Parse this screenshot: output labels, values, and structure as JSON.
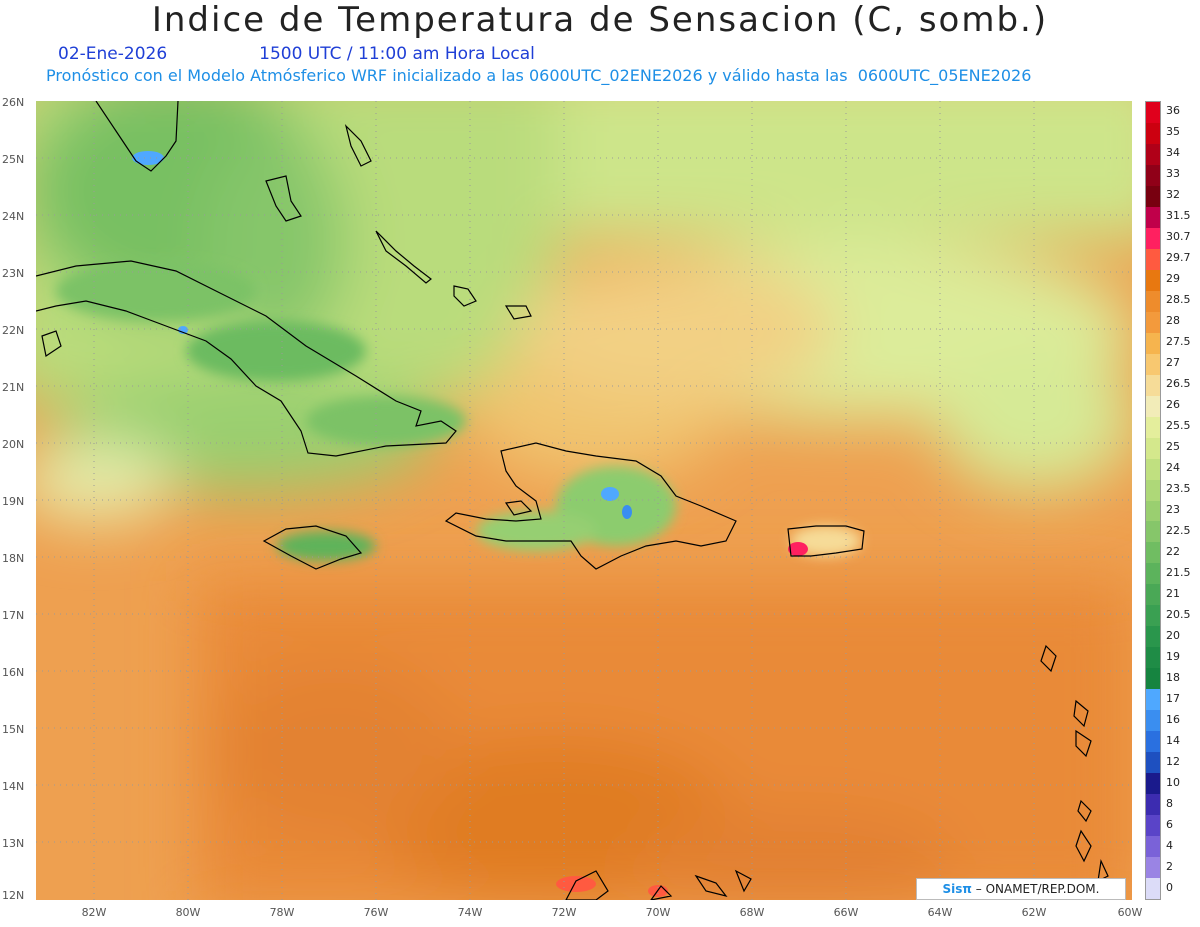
{
  "header": {
    "title": "Indice de Temperatura de Sensacion (C, somb.)",
    "date": "02-Ene-2026",
    "time": "1500 UTC / 11:00 am Hora Local",
    "subtitle": "Pronóstico con el Modelo Atmósferico WRF inicializado a las 0600UTC_02ENE2026 y válido hasta las  0600UTC_05ENE2026"
  },
  "map": {
    "lat_labels": [
      "26N",
      "25N",
      "24N",
      "23N",
      "22N",
      "21N",
      "20N",
      "19N",
      "18N",
      "17N",
      "16N",
      "15N",
      "14N",
      "13N",
      "12N"
    ],
    "lon_labels": [
      "82W",
      "80W",
      "78W",
      "76W",
      "74W",
      "72W",
      "70W",
      "68W",
      "66W",
      "64W",
      "62W",
      "60W"
    ],
    "extent": {
      "lon_min": -83.2,
      "lon_max": -60,
      "lat_min": 12,
      "lat_max": 26
    }
  },
  "colorbar": {
    "labels": [
      "36",
      "35",
      "34",
      "33",
      "32",
      "31.5",
      "30.7",
      "29.7",
      "29",
      "28.5",
      "28",
      "27.5",
      "27",
      "26.5",
      "26",
      "25.5",
      "25",
      "24",
      "23.5",
      "23",
      "22.5",
      "22",
      "21.5",
      "21",
      "20.5",
      "20",
      "19",
      "18",
      "17",
      "16",
      "14",
      "12",
      "10",
      "8",
      "6",
      "4",
      "2",
      "0"
    ],
    "colors": [
      "#e0001c",
      "#cc0010",
      "#b00018",
      "#900018",
      "#780010",
      "#c0004a",
      "#ff2060",
      "#ff5a40",
      "#e87810",
      "#ee8c2c",
      "#f39a3c",
      "#f6b44e",
      "#f8c870",
      "#f6dc98",
      "#f2ecb8",
      "#e4ee9c",
      "#d4e88c",
      "#c0e080",
      "#aed878",
      "#9acf70",
      "#86c66a",
      "#70bd62",
      "#5cb35c",
      "#4aa856",
      "#3aa052",
      "#2a964c",
      "#1f8c46",
      "#168440",
      "#4fa8ff",
      "#3a8ef0",
      "#2a70e0",
      "#1e50c0",
      "#1a1a8c",
      "#3c2cb0",
      "#5a44c8",
      "#7a62d8",
      "#9a84e4",
      "#dcdcf8"
    ]
  },
  "credit": {
    "brand": "Sisπ",
    "text": "– ONAMET/REP.DOM."
  }
}
